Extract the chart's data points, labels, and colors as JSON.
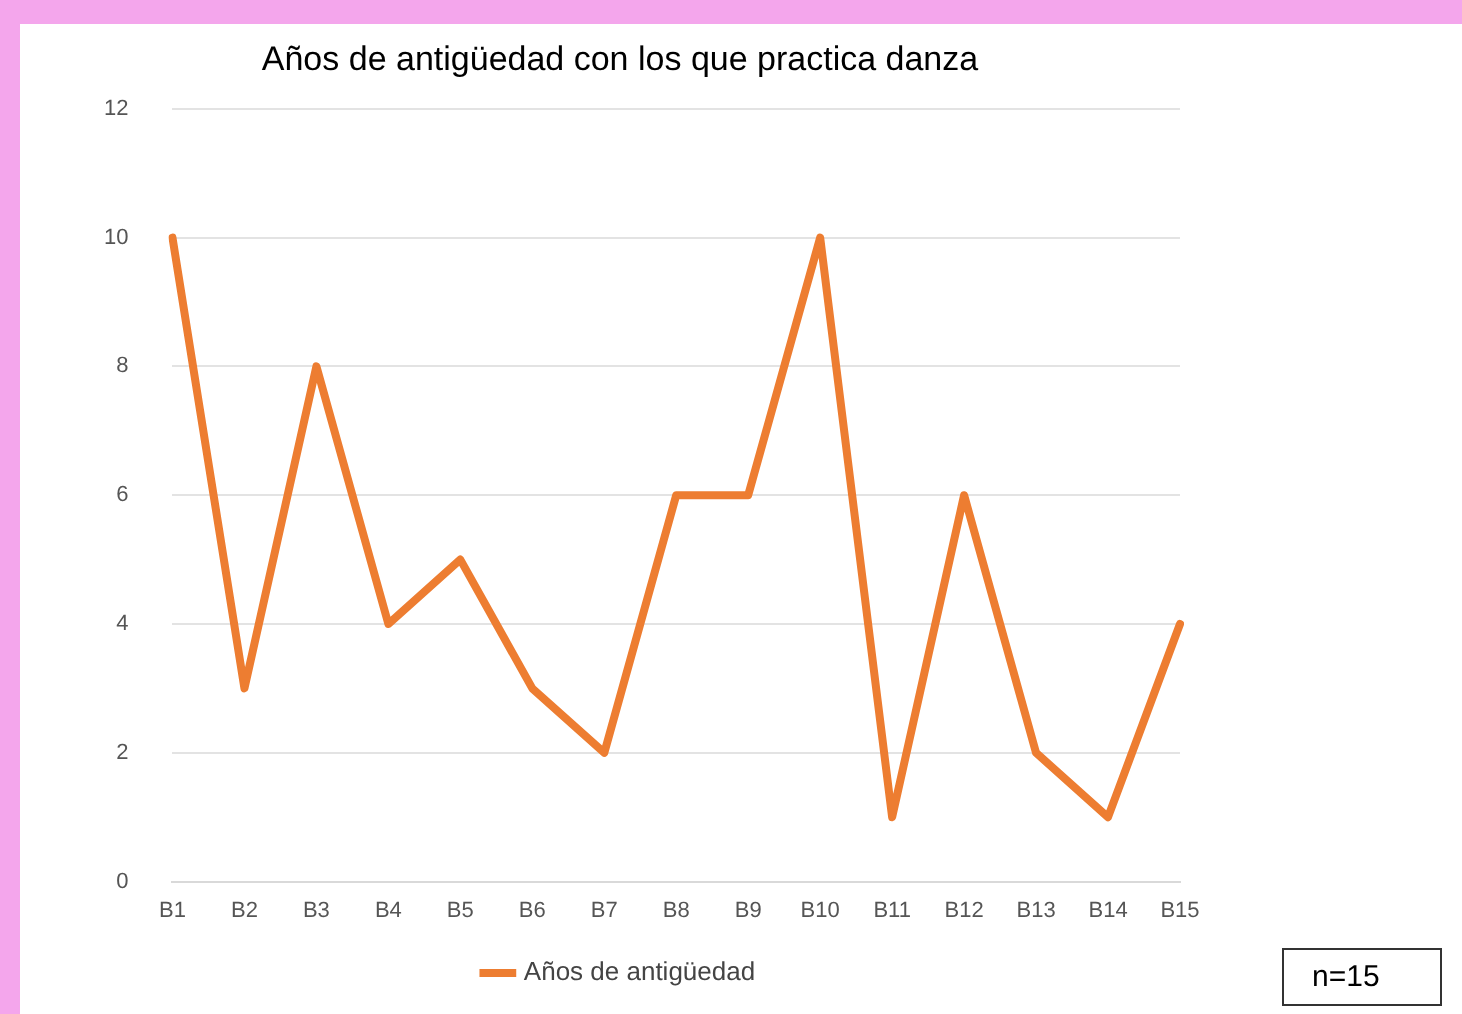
{
  "chart_data": {
    "type": "line",
    "title": "Años de antigüedad con los que practica danza",
    "categories": [
      "B1",
      "B2",
      "B3",
      "B4",
      "B5",
      "B6",
      "B7",
      "B8",
      "B9",
      "B10",
      "B11",
      "B12",
      "B13",
      "B14",
      "B15"
    ],
    "series": [
      {
        "name": "Años de antigüedad",
        "color": "#ed7d31",
        "values": [
          10,
          3,
          8,
          4,
          5,
          3,
          2,
          6,
          6,
          10,
          1,
          6,
          2,
          1,
          4
        ]
      }
    ],
    "ylim": [
      0,
      12
    ],
    "yticks": [
      0,
      2,
      4,
      6,
      8,
      10,
      12
    ],
    "grid": "y",
    "legend": "bottom",
    "marker": "none",
    "line_style": "solid",
    "annotations": [
      "n=15"
    ]
  }
}
